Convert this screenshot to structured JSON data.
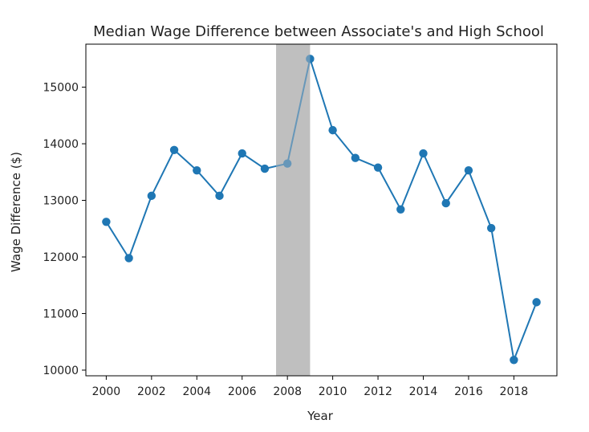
{
  "chart_data": {
    "type": "line",
    "title": "Median Wage Difference between Associate's and High School",
    "xlabel": "Year",
    "ylabel": "Wage Difference ($)",
    "xlim": [
      1999.1,
      2019.9
    ],
    "ylim": [
      9900,
      15760
    ],
    "x_ticks": [
      2000,
      2002,
      2004,
      2006,
      2008,
      2010,
      2012,
      2014,
      2016,
      2018
    ],
    "y_ticks": [
      10000,
      11000,
      12000,
      13000,
      14000,
      15000
    ],
    "x_tick_labels": [
      "2000",
      "2002",
      "2004",
      "2006",
      "2008",
      "2010",
      "2012",
      "2014",
      "2016",
      "2018"
    ],
    "y_tick_labels": [
      "10000",
      "11000",
      "12000",
      "13000",
      "14000",
      "15000"
    ],
    "grid": false,
    "shaded_region": {
      "x_start": 2007.5,
      "x_end": 2009,
      "color": "#bfbfbf"
    },
    "series": [
      {
        "color": "#1f77b4",
        "x": [
          2000,
          2001,
          2002,
          2003,
          2004,
          2005,
          2006,
          2007,
          2008,
          2009,
          2010,
          2011,
          2012,
          2013,
          2014,
          2015,
          2016,
          2017,
          2018,
          2019
        ],
        "y": [
          12620,
          11980,
          13080,
          13890,
          13530,
          13080,
          13830,
          13560,
          13650,
          15500,
          14240,
          13750,
          13580,
          12840,
          13830,
          12950,
          13530,
          12510,
          10180,
          11200
        ]
      }
    ]
  }
}
